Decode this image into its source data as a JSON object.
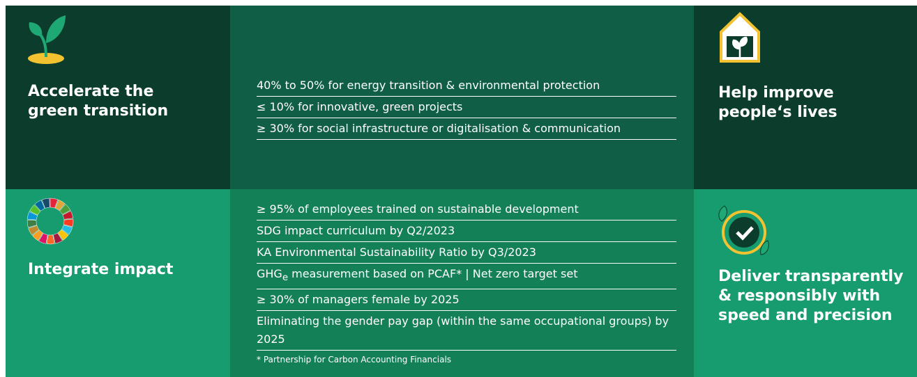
{
  "panels": {
    "top_left": {
      "title": "Accelerate the green transition"
    },
    "top_right": {
      "title": "Help improve people‘s lives"
    },
    "bottom_left": {
      "title": "Integrate impact"
    },
    "bottom_right": {
      "title": "Deliver transparently & responsibly with speed and precision"
    }
  },
  "top_list": [
    "40% to 50% for energy transition & environmental protection",
    "≤ 10% for innovative, green projects",
    "≥ 30% for social infrastructure or digitalisation & communication"
  ],
  "bottom_list": [
    "≥ 95% of employees trained on sustainable development",
    "SDG impact curriculum by Q2/2023",
    "KA Environmental Sustainability Ratio by Q3/2023",
    {
      "base": "GHG",
      "sub": "e",
      "rest": " measurement based on PCAF* | Net zero target set"
    },
    "≥ 30% of managers female by 2025",
    "Eliminating the gender pay gap (within the same occupational groups) by 2025"
  ],
  "footnote": "* Partnership for Carbon Accounting Financials"
}
